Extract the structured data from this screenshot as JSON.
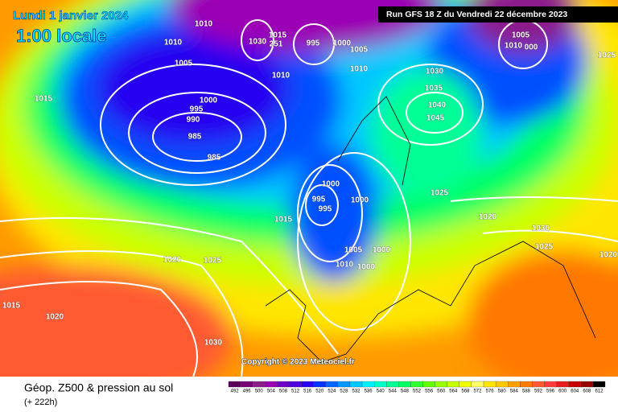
{
  "header": {
    "date": "Lundi 1 janvier 2024",
    "time": "1:00 locale",
    "run": "Run GFS 18 Z du Vendredi 22 décembre 2023"
  },
  "footer": {
    "title": "Géop. Z500 & pression au sol",
    "lead": "(+ 222h)",
    "copyright": "Copyright © 2023 Meteociel.fr"
  },
  "legend": {
    "values": [
      492,
      496,
      500,
      504,
      508,
      512,
      516,
      520,
      524,
      528,
      532,
      536,
      540,
      544,
      548,
      552,
      556,
      560,
      564,
      568,
      572,
      576,
      580,
      584,
      588,
      592,
      596,
      600,
      604,
      608,
      612
    ],
    "colors": [
      "#5a005a",
      "#780078",
      "#8c1e8c",
      "#9b00b4",
      "#6e00c8",
      "#4b00dc",
      "#2800f0",
      "#0032ff",
      "#0064ff",
      "#0096ff",
      "#00c8ff",
      "#00f0ff",
      "#00ffc8",
      "#00ff96",
      "#00ff64",
      "#32ff32",
      "#64ff00",
      "#96ff00",
      "#c8ff00",
      "#f0ff00",
      "#ffff64",
      "#ffe600",
      "#ffc800",
      "#ffa000",
      "#ff7800",
      "#ff5a32",
      "#ff3c3c",
      "#e61e1e",
      "#c80000",
      "#960000",
      "#000000"
    ]
  },
  "isobar_labels": [
    "1010",
    "1010",
    "1005",
    "1015",
    "1030",
    "251",
    "995",
    "1000",
    "1005",
    "1010",
    "1010",
    "1000",
    "995",
    "990",
    "985",
    "985",
    "1030",
    "1035",
    "1040",
    "1045",
    "1005",
    "1010",
    "000",
    "1025",
    "1015",
    "1000",
    "995",
    "995",
    "1000",
    "1015",
    "1025",
    "1020",
    "1030",
    "1025",
    "1005",
    "1000",
    "1010",
    "1000",
    "1020",
    "1025",
    "1020",
    "1015",
    "1020",
    "1030"
  ]
}
